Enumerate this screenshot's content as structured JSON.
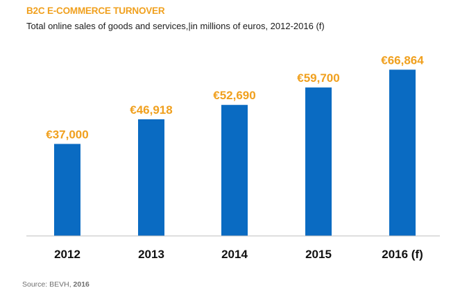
{
  "header": {
    "title": "B2C E-COMMERCE TURNOVER",
    "subtitle": "Total online sales of goods and services,|in millions of euros, 2012-2016 (f)"
  },
  "footer": {
    "source_prefix": "Source: BEVH, ",
    "source_year": "2016"
  },
  "colors": {
    "bar": "#0a6bc2",
    "value_label": "#f0a01e",
    "title": "#f0a01e",
    "axis": "#bdbdbd"
  },
  "chart_data": {
    "type": "bar",
    "categories": [
      "2012",
      "2013",
      "2014",
      "2015",
      "2016 (f)"
    ],
    "values": [
      37000,
      46918,
      52690,
      59700,
      66864
    ],
    "value_labels": [
      "€37,000",
      "€46,918",
      "€52,690",
      "€59,700",
      "€66,864"
    ],
    "ylim": [
      0,
      72000
    ],
    "grid": false,
    "legend": "none"
  }
}
